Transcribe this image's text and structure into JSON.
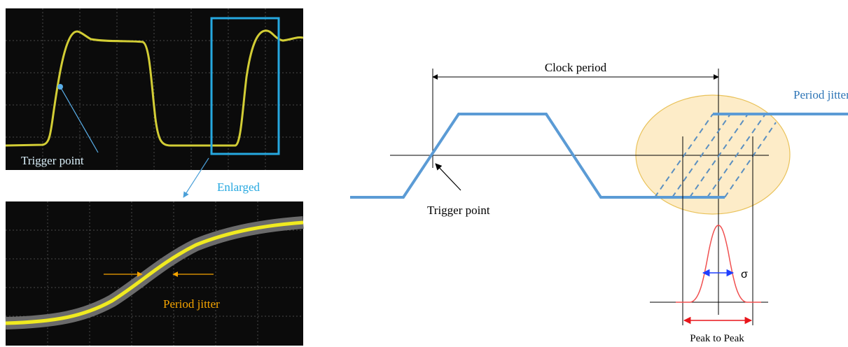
{
  "oscilloscope": {
    "trigger_label": "Trigger point",
    "enlarged_label": "Enlarged",
    "jitter_label": "Period jitter"
  },
  "diagram": {
    "clock_period": "Clock period",
    "jitter_label": "Period jitter",
    "trigger_label": "Trigger point",
    "sigma": "σ",
    "peak_to_peak": "Peak to Peak"
  }
}
